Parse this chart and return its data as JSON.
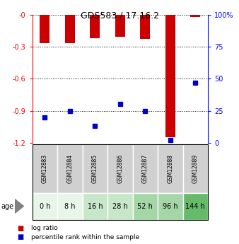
{
  "title": "GDS583 / 17.16.2",
  "samples": [
    "GSM12883",
    "GSM12884",
    "GSM12885",
    "GSM12886",
    "GSM12887",
    "GSM12888",
    "GSM12889"
  ],
  "ages": [
    "0 h",
    "8 h",
    "16 h",
    "28 h",
    "52 h",
    "96 h",
    "144 h"
  ],
  "log_ratios": [
    -0.27,
    -0.27,
    -0.22,
    -0.21,
    -0.23,
    -1.15,
    -0.02
  ],
  "percentile_ranks": [
    20,
    25,
    13,
    30,
    25,
    2,
    47
  ],
  "ylim_left": [
    -1.2,
    0.0
  ],
  "ylim_right": [
    0,
    100
  ],
  "yticks_left": [
    -1.2,
    -0.9,
    -0.6,
    -0.3,
    0.0
  ],
  "yticks_right": [
    0,
    25,
    50,
    75,
    100
  ],
  "ytick_labels_left": [
    "-1.2",
    "-0.9",
    "-0.6",
    "-0.3",
    "-0"
  ],
  "ytick_labels_right": [
    "0",
    "25",
    "50",
    "75",
    "100%"
  ],
  "bar_color": "#cc0000",
  "dot_color": "#0000cc",
  "age_bg_colors": [
    "#e8f5e9",
    "#e8f5e9",
    "#c8e6c9",
    "#c8e6c9",
    "#a5d6a7",
    "#a5d6a7",
    "#66bb6a"
  ],
  "sample_label_bg": "#d0d0d0",
  "legend_label_bar": "log ratio",
  "legend_label_dot": "percentile rank within the sample",
  "bar_width": 0.4,
  "dot_size": 4
}
